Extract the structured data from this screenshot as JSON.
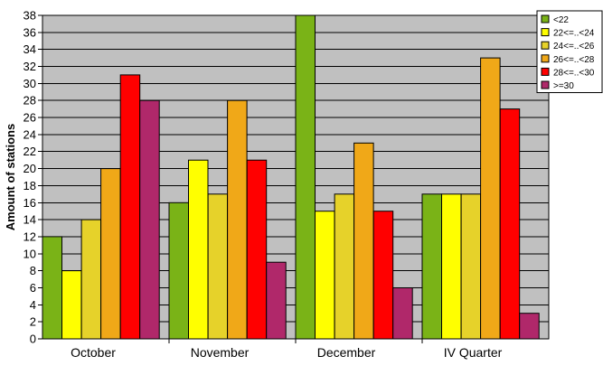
{
  "chart_data": {
    "type": "bar",
    "title": "",
    "xlabel": "",
    "ylabel": "Amount of stations",
    "ylim": [
      0,
      38
    ],
    "ytick_step": 2,
    "grid": true,
    "legend_position": "top-right",
    "plot_background": "#c0c0c0",
    "categories": [
      "October",
      "November",
      "December",
      "IV Quarter"
    ],
    "series": [
      {
        "name": "<22",
        "color": "#7ab317",
        "values": [
          12,
          16,
          38,
          17
        ]
      },
      {
        "name": "22<=..<24",
        "color": "#ffff00",
        "values": [
          8,
          21,
          15,
          17
        ]
      },
      {
        "name": "24<=..<26",
        "color": "#e6d22a",
        "values": [
          14,
          17,
          17,
          17
        ]
      },
      {
        "name": "26<=..<28",
        "color": "#f0a818",
        "values": [
          20,
          28,
          23,
          33
        ]
      },
      {
        "name": "28<=..<30",
        "color": "#ff0000",
        "values": [
          31,
          21,
          15,
          27
        ]
      },
      {
        "name": ">=30",
        "color": "#b0286a",
        "values": [
          28,
          9,
          6,
          3
        ]
      }
    ]
  }
}
